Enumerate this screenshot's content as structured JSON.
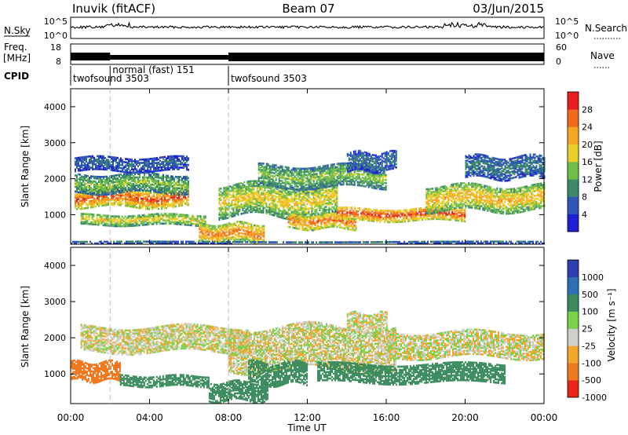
{
  "header": {
    "station": "Inuvik (fitACF)",
    "beam": "Beam 07",
    "date": "03/Jun/2015"
  },
  "strip_nsky": {
    "label": "N.Sky",
    "left_ticks": [
      "10^5",
      "10^0"
    ],
    "right_ticks": [
      "10^5",
      "10^0"
    ],
    "right_label": "N.Search"
  },
  "strip_freq": {
    "label_line1": "Freq.",
    "label_line2": "[MHz]",
    "left_ticks": [
      "18",
      "8"
    ],
    "right_ticks": [
      "60",
      "0"
    ],
    "right_label": "Nave"
  },
  "cpid": {
    "label": "CPID",
    "segments": [
      {
        "name": "twofsound 3503",
        "start_hour": 0,
        "end_hour": 2
      },
      {
        "name": "normal (fast) 151",
        "start_hour": 2,
        "end_hour": 8
      },
      {
        "name": "twofsound 3503",
        "start_hour": 8,
        "end_hour": 24
      }
    ]
  },
  "xaxis": {
    "label": "Time UT",
    "ticks": [
      "00:00",
      "04:00",
      "08:00",
      "12:00",
      "16:00",
      "20:00",
      "00:00"
    ],
    "range_hours": [
      0,
      24
    ]
  },
  "panel_power": {
    "ylabel": "Slant Range [km]",
    "yticks": [
      "1000",
      "2000",
      "3000",
      "4000"
    ],
    "colorbar_label": "Power [dB]",
    "colorbar_ticks": [
      "4",
      "8",
      "12",
      "16",
      "20",
      "24",
      "28"
    ]
  },
  "panel_velocity": {
    "ylabel": "Slant Range [km]",
    "yticks": [
      "1000",
      "2000",
      "3000",
      "4000"
    ],
    "colorbar_label": "Velocity [m s⁻¹]",
    "colorbar_ticks": [
      "1000",
      "500",
      "100",
      "25",
      "-25",
      "-100",
      "-500",
      "-1000"
    ]
  },
  "colors": {
    "power_scale": [
      "#1f1fd6",
      "#2f55b8",
      "#3c8a6a",
      "#6fbd4a",
      "#e8d02a",
      "#f5a623",
      "#f26b1d",
      "#e81e1e"
    ],
    "velocity_scale": [
      "#2b3fb0",
      "#2e6fb5",
      "#3b8a5d",
      "#7ad14a",
      "#cfcfca",
      "#f4a72a",
      "#f0781f",
      "#e8251a"
    ]
  },
  "chart_data": [
    {
      "type": "heatmap",
      "title": "Power [dB]",
      "xlabel": "Time UT",
      "ylabel": "Slant Range [km]",
      "x_range_hours": [
        0,
        24
      ],
      "ylim": [
        180,
        4500
      ],
      "zlim": [
        0,
        30
      ],
      "bands": [
        {
          "t0": 0.2,
          "t1": 6.0,
          "center_km": 1450,
          "halfwidth_km": 250,
          "value_db": 26
        },
        {
          "t0": 0.2,
          "t1": 6.0,
          "center_km": 1850,
          "halfwidth_km": 250,
          "value_db": 14
        },
        {
          "t0": 0.2,
          "t1": 6.0,
          "center_km": 2400,
          "halfwidth_km": 200,
          "value_db": 7
        },
        {
          "t0": 0.5,
          "t1": 6.8,
          "center_km": 850,
          "halfwidth_km": 150,
          "value_db": 18
        },
        {
          "t0": 6.5,
          "t1": 9.8,
          "center_km": 480,
          "halfwidth_km": 250,
          "value_db": 24
        },
        {
          "t0": 7.5,
          "t1": 13.5,
          "center_km": 1400,
          "halfwidth_km": 450,
          "value_db": 18
        },
        {
          "t0": 9.5,
          "t1": 16.0,
          "center_km": 2050,
          "halfwidth_km": 300,
          "value_db": 14
        },
        {
          "t0": 11.0,
          "t1": 14.5,
          "center_km": 800,
          "halfwidth_km": 200,
          "value_db": 25
        },
        {
          "t0": 13.5,
          "t1": 20.0,
          "center_km": 1000,
          "halfwidth_km": 180,
          "value_db": 27
        },
        {
          "t0": 14.0,
          "t1": 16.5,
          "center_km": 2450,
          "halfwidth_km": 250,
          "value_db": 8
        },
        {
          "t0": 18.0,
          "t1": 24.0,
          "center_km": 1450,
          "halfwidth_km": 350,
          "value_db": 20
        },
        {
          "t0": 20.0,
          "t1": 24.0,
          "center_km": 2300,
          "halfwidth_km": 300,
          "value_db": 9
        },
        {
          "t0": 0.0,
          "t1": 24.0,
          "center_km": 220,
          "halfwidth_km": 40,
          "value_db": 8
        }
      ]
    },
    {
      "type": "heatmap",
      "title": "Velocity [m s⁻¹]",
      "xlabel": "Time UT",
      "ylabel": "Slant Range [km]",
      "x_range_hours": [
        0,
        24
      ],
      "ylim": [
        180,
        4500
      ],
      "bands": [
        {
          "t0": 0.0,
          "t1": 2.5,
          "center_km": 1050,
          "halfwidth_km": 250,
          "velocity": -200
        },
        {
          "t0": 2.5,
          "t1": 7.0,
          "center_km": 800,
          "halfwidth_km": 150,
          "velocity": 150
        },
        {
          "t0": 0.5,
          "t1": 9.0,
          "center_km": 1950,
          "halfwidth_km": 350,
          "velocity": 0
        },
        {
          "t0": 7.0,
          "t1": 10.0,
          "center_km": 500,
          "halfwidth_km": 250,
          "velocity": 200
        },
        {
          "t0": 8.0,
          "t1": 16.5,
          "center_km": 1700,
          "halfwidth_km": 600,
          "velocity": 0
        },
        {
          "t0": 9.0,
          "t1": 12.0,
          "center_km": 1000,
          "halfwidth_km": 300,
          "velocity": 250
        },
        {
          "t0": 12.5,
          "t1": 22.0,
          "center_km": 1000,
          "halfwidth_km": 250,
          "velocity": 250
        },
        {
          "t0": 16.0,
          "t1": 24.0,
          "center_km": 1800,
          "halfwidth_km": 350,
          "velocity": 0
        },
        {
          "t0": 14.0,
          "t1": 16.0,
          "center_km": 2400,
          "halfwidth_km": 250,
          "velocity": 0
        }
      ]
    }
  ]
}
